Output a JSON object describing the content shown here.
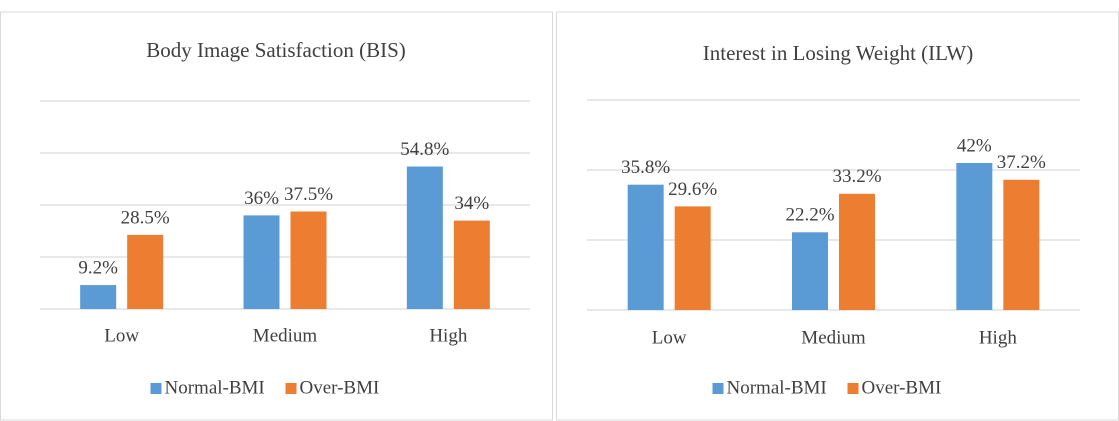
{
  "chart_data": [
    {
      "type": "bar",
      "title": "Body Image Satisfaction (BIS)",
      "categories": [
        "Low",
        "Medium",
        "High"
      ],
      "series": [
        {
          "name": "Normal-BMI",
          "color": "#5b9bd5",
          "values": [
            9.2,
            36,
            54.8
          ],
          "value_labels": [
            "9.2%",
            "36%",
            "54.8%"
          ]
        },
        {
          "name": "Over-BMI",
          "color": "#ed7d31",
          "values": [
            28.5,
            37.5,
            34
          ],
          "value_labels": [
            "28.5%",
            "37.5%",
            "34%"
          ]
        }
      ],
      "ylim": [
        0,
        80
      ],
      "yticks": [
        0,
        20,
        40,
        60,
        80
      ],
      "grid": true,
      "legend": "bottom"
    },
    {
      "type": "bar",
      "title": "Interest in Losing Weight (ILW)",
      "categories": [
        "Low",
        "Medium",
        "High"
      ],
      "series": [
        {
          "name": "Normal-BMI",
          "color": "#5b9bd5",
          "values": [
            35.8,
            22.2,
            42
          ],
          "value_labels": [
            "35.8%",
            "22.2%",
            "42%"
          ]
        },
        {
          "name": "Over-BMI",
          "color": "#ed7d31",
          "values": [
            29.6,
            33.2,
            37.2
          ],
          "value_labels": [
            "29.6%",
            "33.2%",
            "37.2%"
          ]
        }
      ],
      "ylim": [
        0,
        60
      ],
      "yticks": [
        0,
        20,
        40,
        60
      ],
      "grid": true,
      "legend": "bottom"
    }
  ]
}
